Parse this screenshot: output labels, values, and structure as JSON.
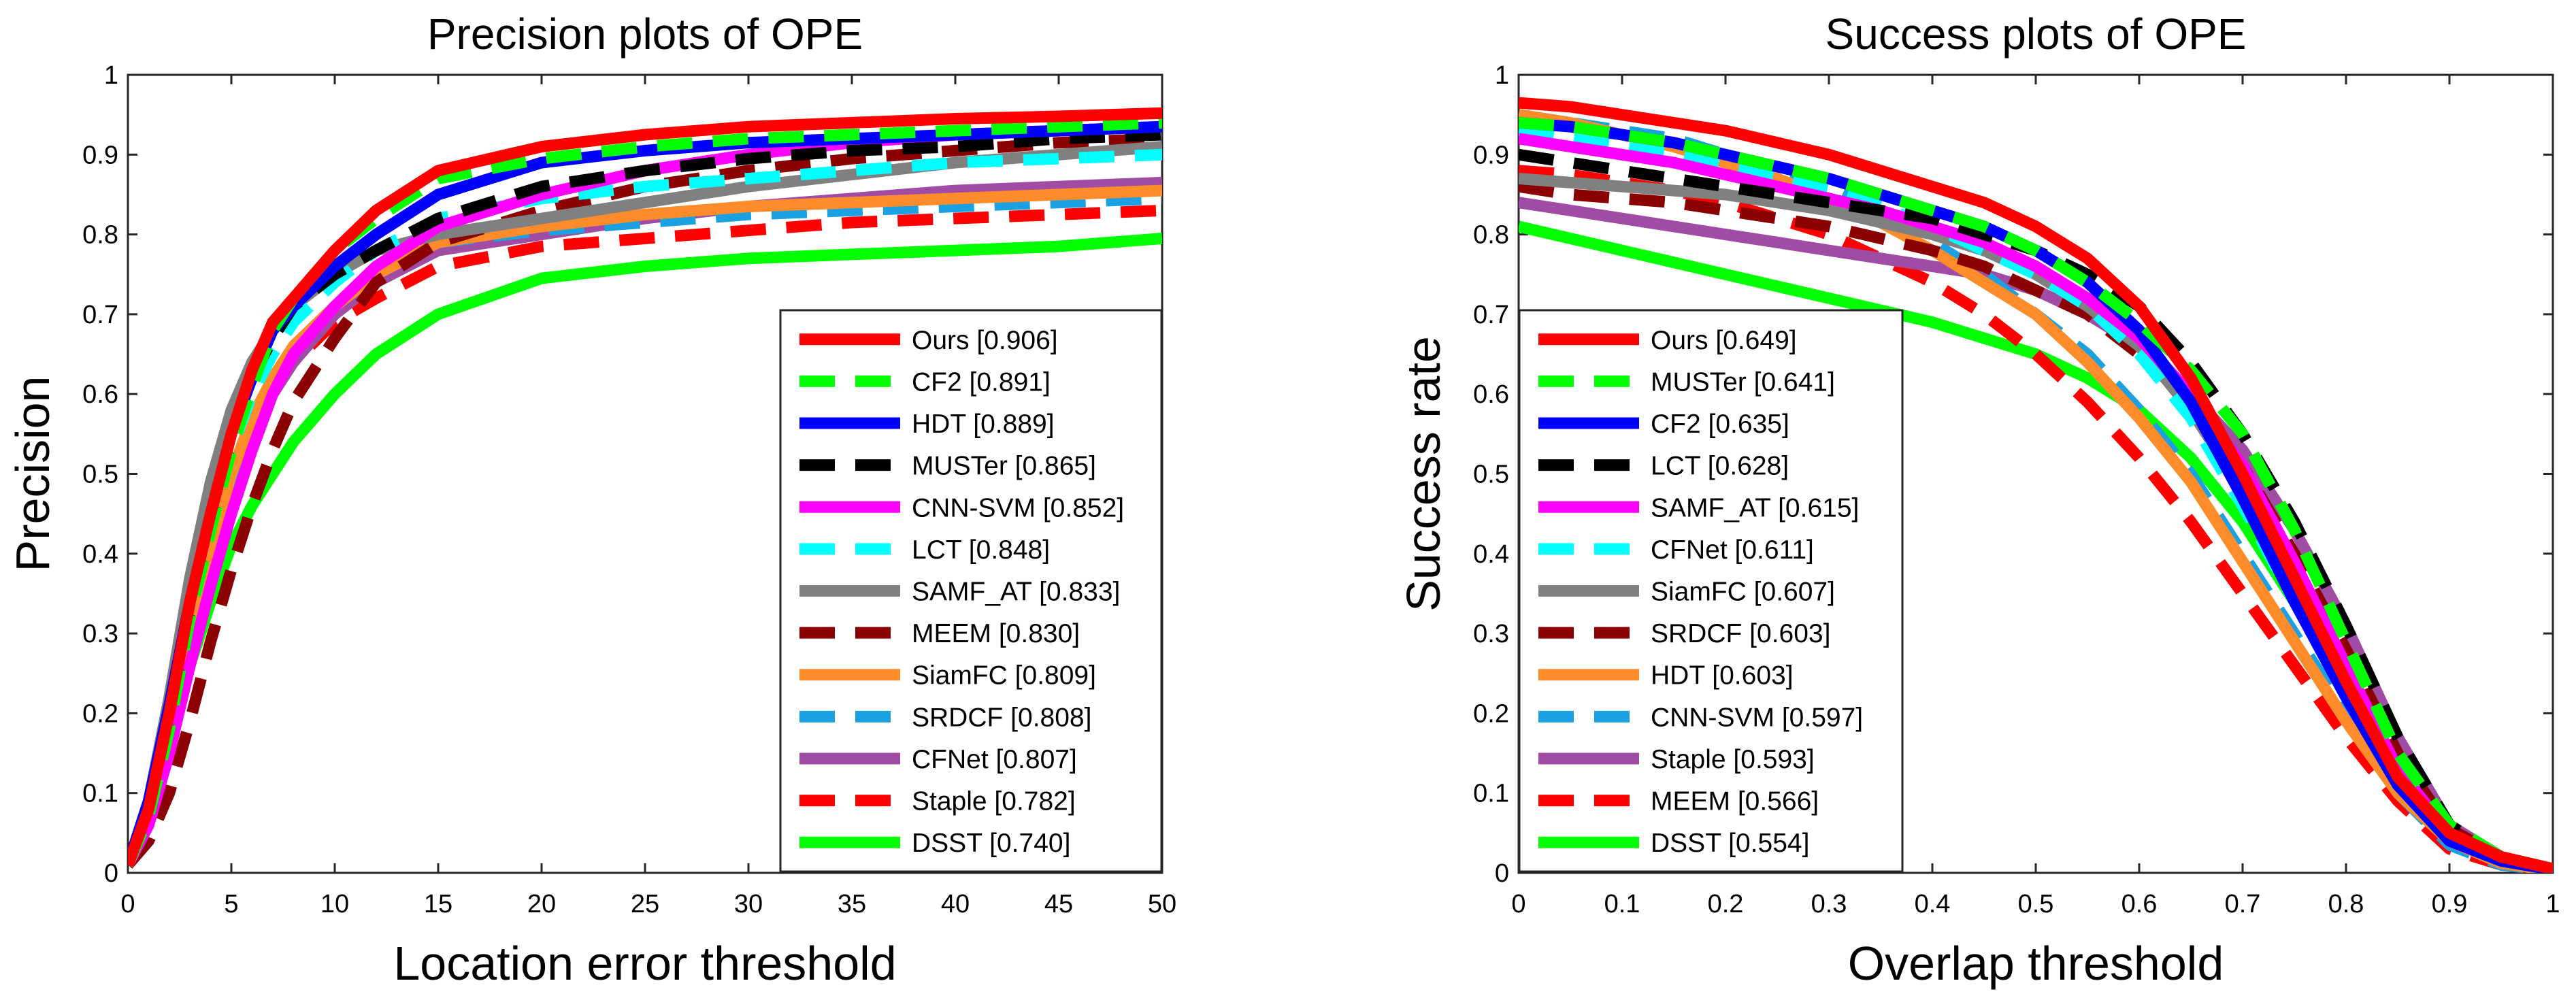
{
  "chart_data": [
    {
      "type": "line",
      "title": "Precision plots of OPE",
      "xlabel": "Location error threshold",
      "ylabel": "Precision",
      "xlim": [
        0,
        50
      ],
      "ylim": [
        0,
        1
      ],
      "xticks": [
        "0",
        "5",
        "10",
        "15",
        "20",
        "25",
        "30",
        "35",
        "40",
        "45",
        "50"
      ],
      "yticks": [
        "0",
        "0.1",
        "0.2",
        "0.3",
        "0.4",
        "0.5",
        "0.6",
        "0.7",
        "0.8",
        "0.9",
        "1"
      ],
      "grid": false,
      "legend_position": "bottom-right",
      "x": [
        0,
        1,
        2,
        3,
        4,
        5,
        6,
        7,
        8,
        10,
        12,
        15,
        20,
        25,
        30,
        35,
        40,
        45,
        50
      ],
      "series": [
        {
          "name": "Ours [0.906]",
          "color": "#ff0000",
          "style": "solid",
          "values": [
            0.01,
            0.08,
            0.2,
            0.34,
            0.45,
            0.55,
            0.63,
            0.69,
            0.72,
            0.78,
            0.83,
            0.88,
            0.91,
            0.925,
            0.935,
            0.94,
            0.945,
            0.948,
            0.952
          ]
        },
        {
          "name": "CF2 [0.891]",
          "color": "#00ff00",
          "style": "dashed",
          "values": [
            0.01,
            0.07,
            0.18,
            0.32,
            0.43,
            0.53,
            0.61,
            0.68,
            0.72,
            0.78,
            0.82,
            0.87,
            0.895,
            0.91,
            0.92,
            0.925,
            0.93,
            0.935,
            0.94
          ]
        },
        {
          "name": "HDT [0.889]",
          "color": "#0000ff",
          "style": "solid",
          "values": [
            0.01,
            0.09,
            0.21,
            0.34,
            0.45,
            0.55,
            0.62,
            0.68,
            0.71,
            0.76,
            0.8,
            0.85,
            0.89,
            0.905,
            0.915,
            0.92,
            0.925,
            0.93,
            0.935
          ]
        },
        {
          "name": "MUSTer [0.865]",
          "color": "#000000",
          "style": "dashed",
          "values": [
            0.01,
            0.08,
            0.19,
            0.33,
            0.44,
            0.54,
            0.62,
            0.67,
            0.71,
            0.75,
            0.78,
            0.82,
            0.86,
            0.88,
            0.895,
            0.905,
            0.91,
            0.92,
            0.925
          ]
        },
        {
          "name": "CNN-SVM [0.852]",
          "color": "#ff00ff",
          "style": "solid",
          "values": [
            0.01,
            0.06,
            0.15,
            0.26,
            0.36,
            0.45,
            0.53,
            0.6,
            0.65,
            0.71,
            0.76,
            0.81,
            0.85,
            0.88,
            0.9,
            0.915,
            0.925,
            0.93,
            0.935
          ]
        },
        {
          "name": "LCT [0.848]",
          "color": "#00ffff",
          "style": "dashed",
          "values": [
            0.01,
            0.08,
            0.2,
            0.33,
            0.44,
            0.53,
            0.6,
            0.65,
            0.69,
            0.74,
            0.78,
            0.82,
            0.845,
            0.86,
            0.87,
            0.88,
            0.89,
            0.895,
            0.9
          ]
        },
        {
          "name": "SAMF_AT [0.833]",
          "color": "#808080",
          "style": "solid",
          "values": [
            0.01,
            0.09,
            0.22,
            0.37,
            0.49,
            0.58,
            0.64,
            0.68,
            0.71,
            0.75,
            0.78,
            0.8,
            0.82,
            0.84,
            0.86,
            0.875,
            0.89,
            0.9,
            0.91
          ]
        },
        {
          "name": "MEEM [0.830]",
          "color": "#8b0000",
          "style": "dashed",
          "values": [
            0.01,
            0.04,
            0.1,
            0.19,
            0.29,
            0.38,
            0.46,
            0.53,
            0.59,
            0.67,
            0.74,
            0.79,
            0.83,
            0.86,
            0.88,
            0.895,
            0.905,
            0.915,
            0.92
          ]
        },
        {
          "name": "SiamFC [0.809]",
          "color": "#ff8c2a",
          "style": "solid",
          "values": [
            0.01,
            0.07,
            0.18,
            0.3,
            0.41,
            0.5,
            0.57,
            0.62,
            0.66,
            0.71,
            0.75,
            0.79,
            0.81,
            0.825,
            0.835,
            0.84,
            0.845,
            0.85,
            0.855
          ]
        },
        {
          "name": "SRDCF [0.808]",
          "color": "#1ba1e2",
          "style": "dashed",
          "values": [
            0.01,
            0.07,
            0.18,
            0.3,
            0.4,
            0.49,
            0.56,
            0.61,
            0.65,
            0.71,
            0.75,
            0.79,
            0.805,
            0.815,
            0.825,
            0.83,
            0.835,
            0.84,
            0.845
          ]
        },
        {
          "name": "CFNet [0.807]",
          "color": "#a04ca4",
          "style": "solid",
          "values": [
            0.01,
            0.07,
            0.17,
            0.29,
            0.39,
            0.47,
            0.54,
            0.6,
            0.64,
            0.7,
            0.74,
            0.78,
            0.8,
            0.82,
            0.835,
            0.845,
            0.855,
            0.86,
            0.865
          ]
        },
        {
          "name": "Staple [0.782]",
          "color": "#ff0000",
          "style": "dashed",
          "values": [
            0.01,
            0.07,
            0.19,
            0.32,
            0.42,
            0.5,
            0.56,
            0.61,
            0.64,
            0.69,
            0.72,
            0.76,
            0.785,
            0.795,
            0.805,
            0.815,
            0.82,
            0.825,
            0.83
          ]
        },
        {
          "name": "DSST [0.740]",
          "color": "#00ff00",
          "style": "solid",
          "values": [
            0.01,
            0.06,
            0.16,
            0.26,
            0.34,
            0.41,
            0.46,
            0.5,
            0.54,
            0.6,
            0.65,
            0.7,
            0.745,
            0.76,
            0.77,
            0.775,
            0.78,
            0.785,
            0.795
          ]
        }
      ]
    },
    {
      "type": "line",
      "title": "Success plots of OPE",
      "xlabel": "Overlap threshold",
      "ylabel": "Success rate",
      "xlim": [
        0,
        1
      ],
      "ylim": [
        0,
        1
      ],
      "xticks": [
        "0",
        "0.1",
        "0.2",
        "0.3",
        "0.4",
        "0.5",
        "0.6",
        "0.7",
        "0.8",
        "0.9",
        "1"
      ],
      "yticks": [
        "0",
        "0.1",
        "0.2",
        "0.3",
        "0.4",
        "0.5",
        "0.6",
        "0.7",
        "0.8",
        "0.9",
        "1"
      ],
      "grid": false,
      "legend_position": "bottom-left",
      "x": [
        0,
        0.05,
        0.1,
        0.15,
        0.2,
        0.25,
        0.3,
        0.35,
        0.4,
        0.45,
        0.5,
        0.55,
        0.6,
        0.65,
        0.7,
        0.75,
        0.8,
        0.85,
        0.9,
        0.95,
        1
      ],
      "series": [
        {
          "name": "Ours [0.649]",
          "color": "#ff0000",
          "style": "solid",
          "values": [
            0.965,
            0.96,
            0.95,
            0.94,
            0.93,
            0.915,
            0.9,
            0.88,
            0.86,
            0.84,
            0.81,
            0.77,
            0.71,
            0.62,
            0.5,
            0.37,
            0.24,
            0.12,
            0.05,
            0.02,
            0.005
          ]
        },
        {
          "name": "MUSTer [0.641]",
          "color": "#00ff00",
          "style": "dashed",
          "values": [
            0.94,
            0.935,
            0.925,
            0.915,
            0.9,
            0.885,
            0.87,
            0.85,
            0.83,
            0.81,
            0.78,
            0.74,
            0.69,
            0.63,
            0.55,
            0.43,
            0.29,
            0.15,
            0.06,
            0.02,
            0.005
          ]
        },
        {
          "name": "CF2 [0.635]",
          "color": "#0000ff",
          "style": "solid",
          "values": [
            0.94,
            0.935,
            0.925,
            0.915,
            0.9,
            0.885,
            0.87,
            0.85,
            0.83,
            0.81,
            0.78,
            0.74,
            0.68,
            0.59,
            0.47,
            0.34,
            0.22,
            0.11,
            0.04,
            0.015,
            0.004
          ]
        },
        {
          "name": "LCT [0.628]",
          "color": "#000000",
          "style": "dashed",
          "values": [
            0.9,
            0.89,
            0.88,
            0.87,
            0.86,
            0.85,
            0.84,
            0.83,
            0.82,
            0.8,
            0.78,
            0.75,
            0.71,
            0.64,
            0.55,
            0.44,
            0.31,
            0.17,
            0.06,
            0.02,
            0.005
          ]
        },
        {
          "name": "SAMF_AT [0.615]",
          "color": "#ff00ff",
          "style": "solid",
          "values": [
            0.92,
            0.91,
            0.9,
            0.89,
            0.875,
            0.86,
            0.845,
            0.83,
            0.81,
            0.79,
            0.76,
            0.72,
            0.67,
            0.6,
            0.51,
            0.39,
            0.26,
            0.13,
            0.05,
            0.015,
            0.004
          ]
        },
        {
          "name": "CFNet [0.611]",
          "color": "#00ffff",
          "style": "dashed",
          "values": [
            0.93,
            0.92,
            0.91,
            0.9,
            0.885,
            0.87,
            0.855,
            0.835,
            0.81,
            0.78,
            0.75,
            0.71,
            0.65,
            0.57,
            0.46,
            0.34,
            0.22,
            0.11,
            0.04,
            0.015,
            0.004
          ]
        },
        {
          "name": "SiamFC [0.607]",
          "color": "#808080",
          "style": "solid",
          "values": [
            0.87,
            0.865,
            0.86,
            0.855,
            0.85,
            0.84,
            0.83,
            0.815,
            0.8,
            0.78,
            0.75,
            0.71,
            0.66,
            0.58,
            0.48,
            0.36,
            0.24,
            0.12,
            0.045,
            0.015,
            0.004
          ]
        },
        {
          "name": "SRDCF [0.603]",
          "color": "#8b0000",
          "style": "dashed",
          "values": [
            0.86,
            0.85,
            0.845,
            0.84,
            0.83,
            0.82,
            0.81,
            0.795,
            0.78,
            0.76,
            0.73,
            0.7,
            0.65,
            0.59,
            0.51,
            0.4,
            0.28,
            0.15,
            0.055,
            0.02,
            0.005
          ]
        },
        {
          "name": "HDT [0.603]",
          "color": "#ff8c2a",
          "style": "solid",
          "values": [
            0.95,
            0.94,
            0.925,
            0.91,
            0.89,
            0.87,
            0.845,
            0.815,
            0.78,
            0.74,
            0.7,
            0.64,
            0.57,
            0.49,
            0.39,
            0.29,
            0.19,
            0.1,
            0.04,
            0.012,
            0.003
          ]
        },
        {
          "name": "CNN-SVM [0.597]",
          "color": "#1ba1e2",
          "style": "dashed",
          "values": [
            0.95,
            0.94,
            0.93,
            0.92,
            0.9,
            0.88,
            0.86,
            0.83,
            0.79,
            0.75,
            0.7,
            0.65,
            0.58,
            0.5,
            0.4,
            0.3,
            0.2,
            0.1,
            0.035,
            0.01,
            0.003
          ]
        },
        {
          "name": "Staple [0.593]",
          "color": "#a04ca4",
          "style": "solid",
          "values": [
            0.84,
            0.83,
            0.82,
            0.81,
            0.8,
            0.79,
            0.78,
            0.77,
            0.76,
            0.75,
            0.73,
            0.7,
            0.66,
            0.6,
            0.53,
            0.43,
            0.31,
            0.17,
            0.06,
            0.02,
            0.005
          ]
        },
        {
          "name": "MEEM [0.566]",
          "color": "#ff0000",
          "style": "dashed",
          "values": [
            0.88,
            0.875,
            0.865,
            0.855,
            0.84,
            0.82,
            0.8,
            0.77,
            0.74,
            0.7,
            0.65,
            0.59,
            0.52,
            0.44,
            0.35,
            0.26,
            0.17,
            0.09,
            0.03,
            0.01,
            0.003
          ]
        },
        {
          "name": "DSST [0.554]",
          "color": "#00ff00",
          "style": "solid",
          "values": [
            0.81,
            0.795,
            0.78,
            0.765,
            0.75,
            0.735,
            0.72,
            0.705,
            0.69,
            0.67,
            0.65,
            0.62,
            0.58,
            0.52,
            0.44,
            0.34,
            0.23,
            0.12,
            0.045,
            0.015,
            0.004
          ]
        }
      ]
    }
  ]
}
